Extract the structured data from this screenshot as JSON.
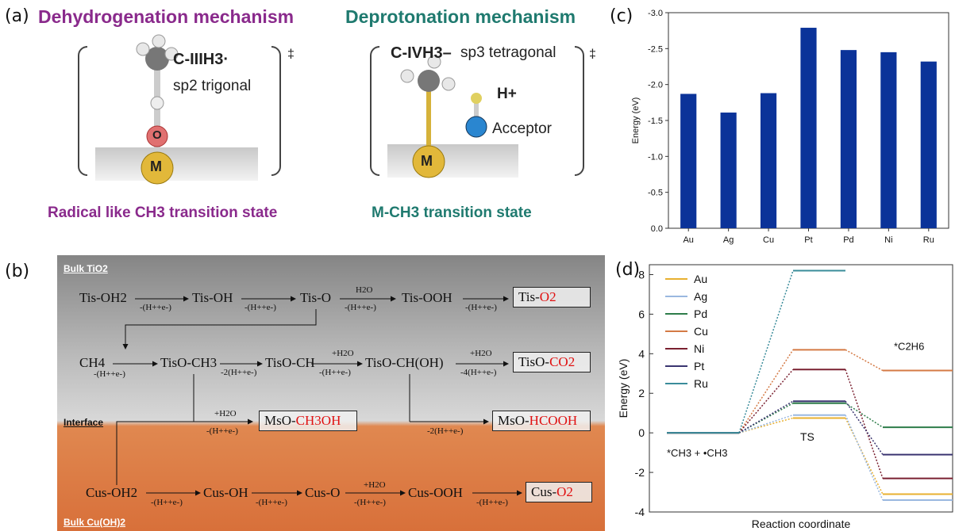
{
  "panel_labels": {
    "a": "(a)",
    "b": "(b)",
    "c": "(c)",
    "d": "(d)"
  },
  "panel_a": {
    "left_title": "Dehydrogenation mechanism",
    "right_title": "Deprotonation mechanism",
    "left_species": "C-IIIH3·",
    "left_hybrid": "sp2 trigonal",
    "right_species": "C-IVH3–",
    "right_hybrid": "sp3 tetragonal",
    "proton": "H+",
    "acceptor": "Acceptor",
    "atom_o": "O",
    "atom_m": "M",
    "dagger": "‡",
    "left_ts": "Radical like CH3 transition state",
    "right_ts": "M-CH3 transition state"
  },
  "panel_b": {
    "bulk_top": "Bulk TiO2",
    "interface": "Interface",
    "bulk_bottom": "Bulk Cu(OH)2",
    "row1": [
      "Tis-OH2",
      "Tis-OH",
      "Tis-O",
      "Tis-OOH"
    ],
    "row1_end": {
      "prefix": "Tis-",
      "red": "O2"
    },
    "row2": [
      "CH4",
      "TisO-CH3",
      "TisO-CH",
      "TisO-CH(OH)"
    ],
    "row2_end": {
      "prefix": "TisO-",
      "red": "CO2"
    },
    "meoh": {
      "prefix": "MsO-",
      "red": "CH3OH"
    },
    "hcooh": {
      "prefix": "MsO-",
      "red": "HCOOH"
    },
    "row4": [
      "Cus-OH2",
      "Cus-OH",
      "Cus-O",
      "Cus-OOH"
    ],
    "row4_end": {
      "prefix": "Cus-",
      "red": "O2"
    },
    "lbl_pe": "-(H++e-)",
    "lbl_2pe": "-2(H++e-)",
    "lbl_4pe": "-4(H++e-)",
    "lbl_h2o": "H2O",
    "lbl_plus_h2o": "+H2O"
  },
  "chart_data": [
    {
      "type": "bar",
      "title": "",
      "xlabel": "",
      "ylabel": "Energy (eV)",
      "categories": [
        "Au",
        "Ag",
        "Cu",
        "Pt",
        "Pd",
        "Ni",
        "Ru"
      ],
      "values": [
        -1.87,
        -1.61,
        -1.88,
        -2.79,
        -2.48,
        -2.45,
        -2.32
      ],
      "ylim": [
        0.0,
        -3.0
      ],
      "yticks": [
        "-3.0",
        "-2.5",
        "-2.0",
        "-1.5",
        "-1.0",
        "-0.5",
        "0.0"
      ],
      "bar_color": "#0b3399"
    },
    {
      "type": "line",
      "title": "",
      "xlabel": "Reaction coordinate",
      "ylabel": "Energy (eV)",
      "stages": [
        "*CH3 + •CH3",
        "TS",
        "*C2H6"
      ],
      "ylim": [
        -4,
        8.5
      ],
      "yticks": [
        "-4",
        "-2",
        "0",
        "2",
        "4",
        "6",
        "8"
      ],
      "legend_position": "upper-left",
      "series": [
        {
          "name": "Au",
          "color": "#e8b030",
          "values": [
            0.0,
            0.75,
            -3.1
          ]
        },
        {
          "name": "Ag",
          "color": "#9ab8e0",
          "values": [
            0.0,
            0.9,
            -3.4
          ]
        },
        {
          "name": "Pd",
          "color": "#2e7d4a",
          "values": [
            0.0,
            1.5,
            0.28
          ]
        },
        {
          "name": "Cu",
          "color": "#d47a45",
          "values": [
            0.0,
            4.2,
            3.15
          ]
        },
        {
          "name": "Ni",
          "color": "#7a2030",
          "values": [
            0.0,
            3.2,
            -2.3
          ]
        },
        {
          "name": "Pt",
          "color": "#3a3570",
          "values": [
            0.0,
            1.6,
            -1.1
          ]
        },
        {
          "name": "Ru",
          "color": "#3a8c9a",
          "values": [
            0.0,
            8.2,
            null
          ]
        }
      ]
    }
  ]
}
